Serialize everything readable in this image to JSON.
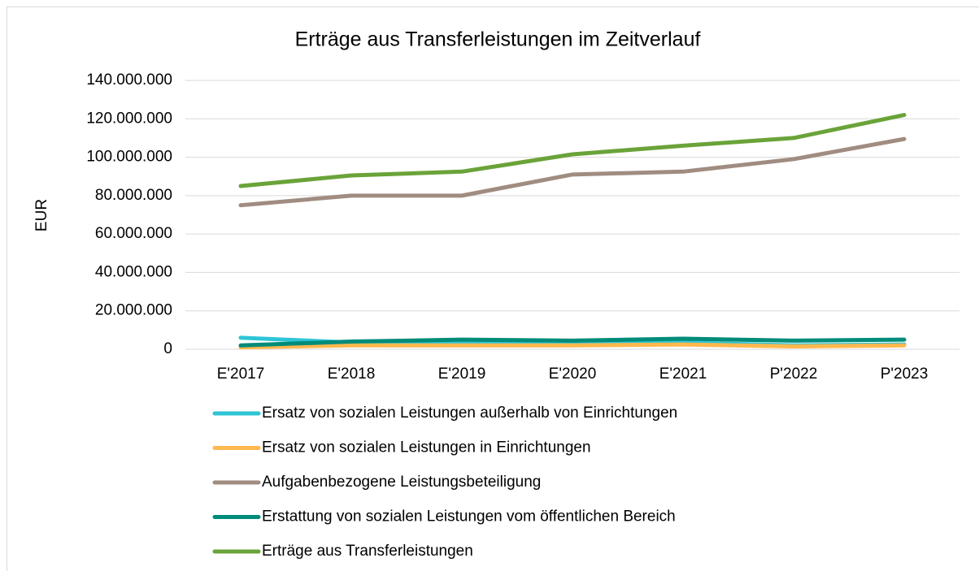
{
  "chart_data": {
    "type": "line",
    "title": "Erträge aus Transferleistungen im Zeitverlauf",
    "y_label": "EUR",
    "categories": [
      "E'2017",
      "E'2018",
      "E'2019",
      "E'2020",
      "E'2021",
      "P'2022",
      "P'2023"
    ],
    "series": [
      {
        "name": "Ersatz von sozialen Leistungen außerhalb von Einrichtungen",
        "color": "#2ec4d6",
        "values": [
          6000000,
          3500000,
          3000000,
          3000000,
          3500000,
          2000000,
          2500000
        ]
      },
      {
        "name": "Ersatz von sozialen Leistungen in Einrichtungen",
        "color": "#ffb84d",
        "values": [
          1000000,
          2000000,
          2000000,
          2000000,
          2500000,
          1500000,
          2000000
        ]
      },
      {
        "name": "Aufgabenbezogene Leistungsbeteiligung",
        "color": "#a08c80",
        "values": [
          75000000,
          80000000,
          80000000,
          91000000,
          92500000,
          99000000,
          109500000
        ]
      },
      {
        "name": "Erstattung von sozialen Leistungen vom öffentlichen Bereich",
        "color": "#008c7a",
        "values": [
          2000000,
          4000000,
          5000000,
          4500000,
          5500000,
          4500000,
          5000000
        ]
      },
      {
        "name": "Erträge aus Transferleistungen",
        "color": "#6aa339",
        "values": [
          85000000,
          90500000,
          92500000,
          101500000,
          106000000,
          110000000,
          122000000
        ]
      }
    ],
    "ylim": [
      0,
      140000000
    ],
    "yticks": [
      0,
      {
        "value": 20000000,
        "label": "20.000.000"
      },
      {
        "value": 40000000,
        "label": "40.000.000"
      },
      {
        "value": 60000000,
        "label": "60.000.000"
      },
      {
        "value": 80000000,
        "label": "80.000.000"
      },
      {
        "value": 100000000,
        "label": "100.000.000"
      },
      {
        "value": 120000000,
        "label": "120.000.000"
      },
      {
        "value": 140000000,
        "label": "140.000.000"
      }
    ],
    "grid": true
  }
}
